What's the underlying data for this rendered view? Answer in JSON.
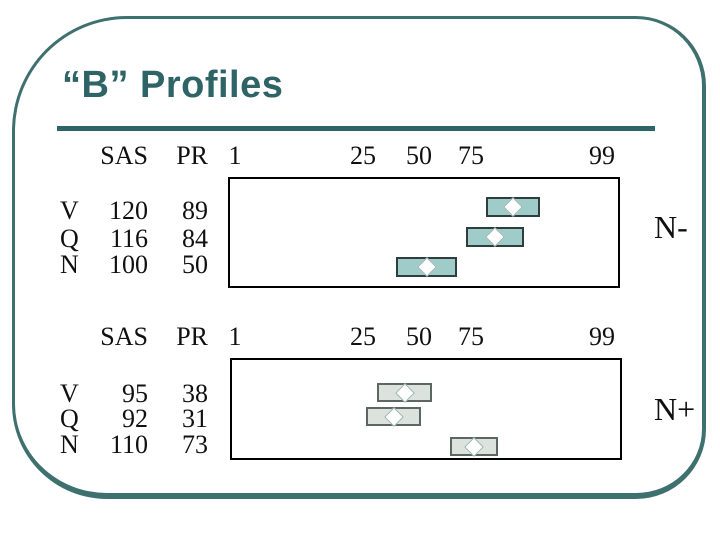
{
  "slide": {
    "title": "“B” Profiles"
  },
  "colors": {
    "accent_teal": "#2E6466",
    "frame_teal": "#3E706F",
    "bar_fill_n_minus": "#9FCBC9",
    "bar_border_n_minus": "#2E3D3D",
    "bar_fill_n_plus": "#DCE3DF",
    "bar_border_n_plus": "#5C6663",
    "chart_box_border": "#000000",
    "diamond_fill": "#FFFFFF"
  },
  "columns": {
    "sas": "SAS",
    "pr": "PR"
  },
  "chart_data": [
    {
      "type": "bar",
      "group_label": "N-",
      "orientation": "horizontal",
      "x_axis": {
        "ticks": [
          1,
          25,
          50,
          75,
          99
        ],
        "tick_labels": [
          "1",
          "25",
          "50",
          "75",
          "99"
        ],
        "scale": "normal-quantile-percentile"
      },
      "bar_color": "#9FCBC9",
      "bar_border": "#2E3D3D",
      "rows": [
        {
          "label": "V",
          "sas": 120,
          "pr": 89,
          "band_percentile": [
            82,
            95
          ],
          "marker_percentile": 89
        },
        {
          "label": "Q",
          "sas": 116,
          "pr": 84,
          "band_percentile": [
            74,
            92
          ],
          "marker_percentile": 84
        },
        {
          "label": "N",
          "sas": 100,
          "pr": 50,
          "band_percentile": [
            39,
            70
          ],
          "marker_percentile": 50
        }
      ]
    },
    {
      "type": "bar",
      "group_label": "N+",
      "orientation": "horizontal",
      "x_axis": {
        "ticks": [
          1,
          25,
          50,
          75,
          99
        ],
        "tick_labels": [
          "1",
          "25",
          "50",
          "75",
          "99"
        ],
        "scale": "normal-quantile-percentile"
      },
      "bar_color": "#DCE3DF",
      "bar_border": "#5C6663",
      "rows": [
        {
          "label": "V",
          "sas": 95,
          "pr": 38,
          "band_percentile": [
            29,
            56
          ],
          "marker_percentile": 38
        },
        {
          "label": "Q",
          "sas": 92,
          "pr": 31,
          "band_percentile": [
            24,
            51
          ],
          "marker_percentile": 31
        },
        {
          "label": "N",
          "sas": 110,
          "pr": 73,
          "band_percentile": [
            66,
            85
          ],
          "marker_percentile": 73
        }
      ]
    }
  ]
}
